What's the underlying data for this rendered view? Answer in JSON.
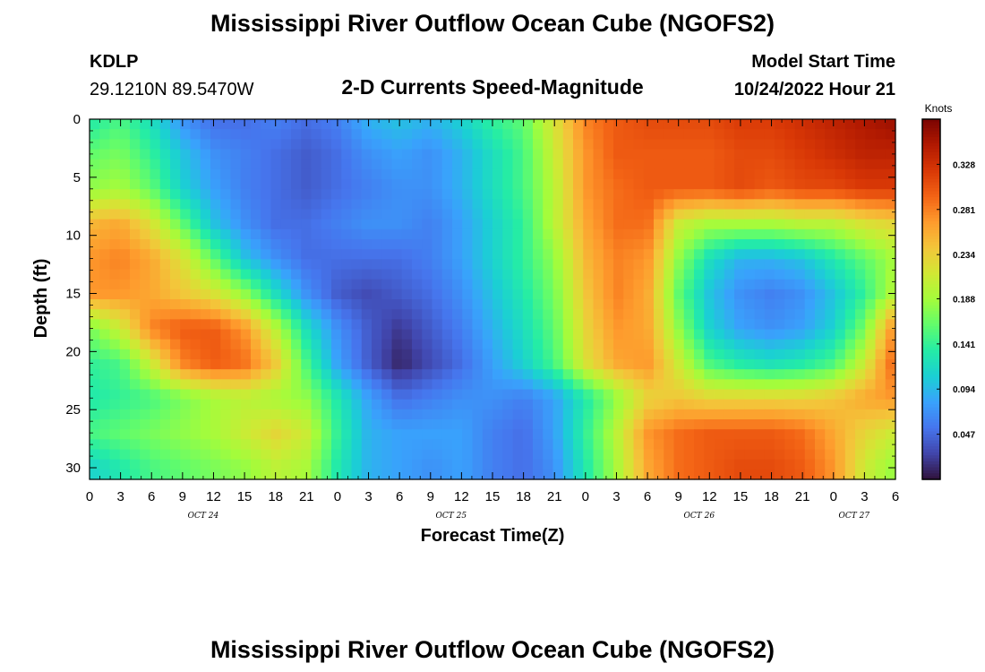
{
  "header": {
    "title": "Mississippi River Outflow Ocean Cube (NGOFS2)",
    "station": "KDLP",
    "coords": "29.1210N  89.5470W",
    "subtitle": "2-D Currents Speed-Magnitude",
    "model_start_label": "Model Start Time",
    "model_start_value": "10/24/2022 Hour 21"
  },
  "footer": {
    "title": "Mississippi River Outflow Ocean Cube (NGOFS2)"
  },
  "chart_data": {
    "type": "heatmap",
    "title": "2-D Currents Speed-Magnitude",
    "xlabel": "Forecast Time(Z)",
    "ylabel": "Depth (ft)",
    "x_range_hours": [
      0,
      78
    ],
    "y_range": [
      0,
      31
    ],
    "y_inverted": true,
    "x_tick_labels": [
      "0",
      "3",
      "6",
      "9",
      "12",
      "15",
      "18",
      "21",
      "0",
      "3",
      "6",
      "9",
      "12",
      "15",
      "18",
      "21",
      "0",
      "3",
      "6",
      "9",
      "12",
      "15",
      "18",
      "21",
      "0",
      "3",
      "6"
    ],
    "x_tick_hours": [
      0,
      3,
      6,
      9,
      12,
      15,
      18,
      21,
      24,
      27,
      30,
      33,
      36,
      39,
      42,
      45,
      48,
      51,
      54,
      57,
      60,
      63,
      66,
      69,
      72,
      75,
      78
    ],
    "date_labels": [
      {
        "text": "OCT 24",
        "hour": 11
      },
      {
        "text": "OCT 25",
        "hour": 35
      },
      {
        "text": "OCT 26",
        "hour": 59
      },
      {
        "text": "OCT 27",
        "hour": 74
      }
    ],
    "y_ticks": [
      0,
      5,
      10,
      15,
      20,
      25,
      30
    ],
    "colorbar": {
      "unit": "Knots",
      "range": [
        0.0,
        0.375
      ],
      "ticks": [
        0.047,
        0.094,
        0.141,
        0.188,
        0.234,
        0.281,
        0.328
      ],
      "colormap": [
        "#30123b",
        "#4145ab",
        "#4675ed",
        "#39a2fc",
        "#1bcfd4",
        "#24eca6",
        "#61fc6c",
        "#a4fc3b",
        "#d1e834",
        "#f3c63a",
        "#fe9b2d",
        "#f36315",
        "#d93806",
        "#b11901",
        "#7a0402"
      ]
    },
    "grid_x_hours": [
      0,
      3,
      6,
      9,
      12,
      15,
      18,
      21,
      24,
      27,
      30,
      33,
      36,
      39,
      42,
      45,
      48,
      51,
      54,
      57,
      60,
      63,
      66,
      69,
      72,
      75,
      78
    ],
    "grid_y_ft": [
      0,
      3,
      6,
      9,
      12,
      15,
      18,
      21,
      24,
      27,
      30
    ],
    "values": [
      [
        0.13,
        0.15,
        0.12,
        0.07,
        0.05,
        0.05,
        0.06,
        0.05,
        0.06,
        0.09,
        0.1,
        0.09,
        0.11,
        0.14,
        0.16,
        0.22,
        0.28,
        0.3,
        0.31,
        0.31,
        0.31,
        0.32,
        0.32,
        0.33,
        0.34,
        0.35,
        0.36
      ],
      [
        0.16,
        0.17,
        0.14,
        0.1,
        0.07,
        0.06,
        0.05,
        0.04,
        0.05,
        0.07,
        0.08,
        0.07,
        0.09,
        0.12,
        0.15,
        0.21,
        0.27,
        0.3,
        0.3,
        0.3,
        0.3,
        0.31,
        0.31,
        0.32,
        0.33,
        0.34,
        0.34
      ],
      [
        0.18,
        0.19,
        0.16,
        0.11,
        0.08,
        0.06,
        0.05,
        0.04,
        0.05,
        0.06,
        0.07,
        0.07,
        0.09,
        0.12,
        0.15,
        0.2,
        0.27,
        0.29,
        0.3,
        0.3,
        0.3,
        0.31,
        0.3,
        0.31,
        0.31,
        0.32,
        0.32
      ],
      [
        0.25,
        0.26,
        0.22,
        0.16,
        0.1,
        0.07,
        0.05,
        0.05,
        0.06,
        0.07,
        0.07,
        0.06,
        0.08,
        0.11,
        0.14,
        0.2,
        0.26,
        0.29,
        0.29,
        0.21,
        0.19,
        0.19,
        0.19,
        0.2,
        0.2,
        0.22,
        0.23
      ],
      [
        0.27,
        0.28,
        0.26,
        0.22,
        0.16,
        0.1,
        0.07,
        0.05,
        0.05,
        0.05,
        0.05,
        0.06,
        0.08,
        0.11,
        0.14,
        0.18,
        0.25,
        0.28,
        0.27,
        0.18,
        0.12,
        0.09,
        0.09,
        0.1,
        0.13,
        0.16,
        0.19
      ],
      [
        0.27,
        0.27,
        0.26,
        0.24,
        0.22,
        0.18,
        0.12,
        0.07,
        0.04,
        0.03,
        0.04,
        0.05,
        0.07,
        0.1,
        0.13,
        0.17,
        0.24,
        0.28,
        0.26,
        0.16,
        0.1,
        0.07,
        0.06,
        0.07,
        0.1,
        0.14,
        0.2
      ],
      [
        0.17,
        0.21,
        0.28,
        0.3,
        0.3,
        0.27,
        0.2,
        0.12,
        0.07,
        0.04,
        0.02,
        0.04,
        0.06,
        0.09,
        0.12,
        0.16,
        0.23,
        0.27,
        0.26,
        0.18,
        0.11,
        0.08,
        0.07,
        0.08,
        0.11,
        0.17,
        0.28
      ],
      [
        0.14,
        0.15,
        0.21,
        0.28,
        0.3,
        0.29,
        0.24,
        0.15,
        0.08,
        0.04,
        0.01,
        0.03,
        0.05,
        0.08,
        0.11,
        0.15,
        0.22,
        0.26,
        0.27,
        0.21,
        0.15,
        0.13,
        0.12,
        0.13,
        0.15,
        0.21,
        0.3
      ],
      [
        0.13,
        0.14,
        0.15,
        0.17,
        0.19,
        0.2,
        0.19,
        0.18,
        0.13,
        0.08,
        0.05,
        0.06,
        0.07,
        0.07,
        0.06,
        0.08,
        0.13,
        0.18,
        0.23,
        0.24,
        0.23,
        0.23,
        0.23,
        0.23,
        0.24,
        0.26,
        0.27
      ],
      [
        0.15,
        0.16,
        0.17,
        0.18,
        0.19,
        0.21,
        0.23,
        0.21,
        0.14,
        0.09,
        0.08,
        0.08,
        0.08,
        0.06,
        0.05,
        0.08,
        0.14,
        0.2,
        0.27,
        0.29,
        0.3,
        0.3,
        0.3,
        0.29,
        0.26,
        0.23,
        0.21
      ],
      [
        0.11,
        0.13,
        0.15,
        0.16,
        0.17,
        0.18,
        0.2,
        0.19,
        0.13,
        0.09,
        0.08,
        0.07,
        0.08,
        0.06,
        0.05,
        0.07,
        0.13,
        0.19,
        0.26,
        0.29,
        0.3,
        0.31,
        0.31,
        0.3,
        0.27,
        0.21,
        0.18
      ]
    ]
  }
}
